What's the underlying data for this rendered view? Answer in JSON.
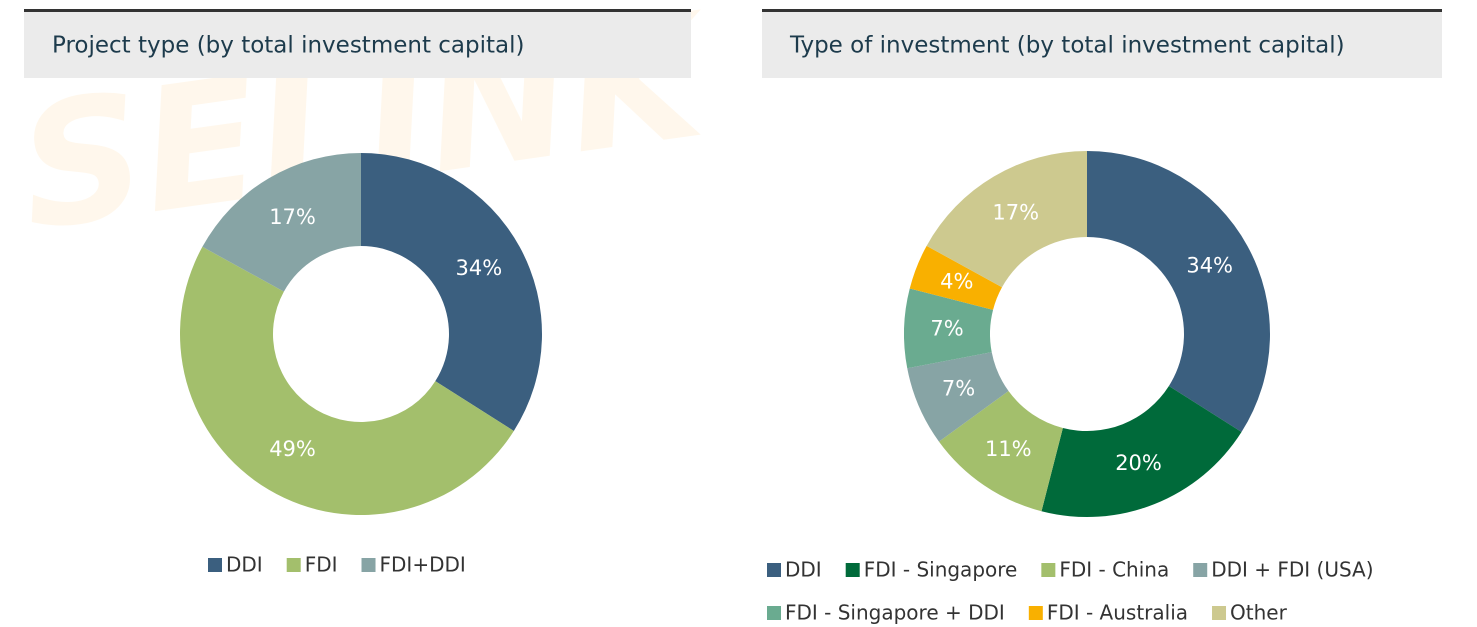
{
  "watermark": "SELINK",
  "chart_data": [
    {
      "type": "pie",
      "title": "Project type (by total investment capital)",
      "categories": [
        "DDI",
        "FDI",
        "FDI+DDI"
      ],
      "values": [
        34,
        49,
        17
      ],
      "value_labels": [
        "34%",
        "49%",
        "17%"
      ],
      "colors": [
        "#3b5f7f",
        "#a3bf6c",
        "#87a4a5"
      ]
    },
    {
      "type": "pie",
      "title": "Type of investment (by total investment capital)",
      "categories": [
        "DDI",
        "FDI - Singapore",
        "FDI - China",
        "DDI + FDI (USA)",
        "FDI - Singapore + DDI",
        "FDI - Australia",
        "Other"
      ],
      "values": [
        34,
        20,
        11,
        7,
        7,
        4,
        17
      ],
      "value_labels": [
        "34%",
        "20%",
        "11%",
        "7%",
        "7%",
        "4%",
        "17%"
      ],
      "colors": [
        "#3b5f7f",
        "#006a3a",
        "#a3bf6c",
        "#87a4a5",
        "#6aab90",
        "#f9b000",
        "#cdc98f"
      ]
    }
  ]
}
